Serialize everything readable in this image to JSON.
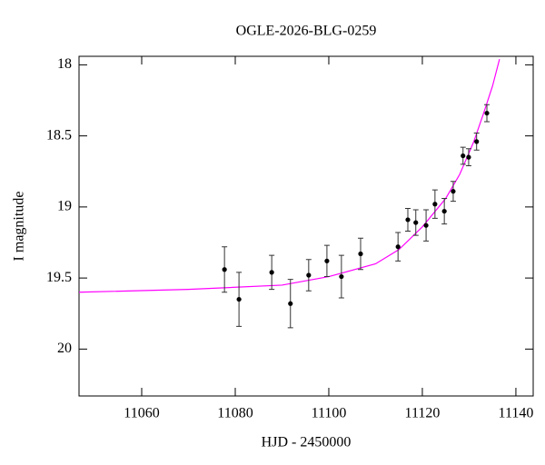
{
  "chart_data": {
    "type": "scatter",
    "title": "OGLE-2026-BLG-0259",
    "x_label": "HJD - 2450000",
    "y_label": "I magnitude",
    "x": [
      11077.7,
      11080.8,
      11087.8,
      11091.8,
      11095.7,
      11099.6,
      11102.7,
      11106.8,
      11114.8,
      11116.9,
      11118.6,
      11120.8,
      11122.7,
      11124.7,
      11126.6,
      11128.7,
      11129.9,
      11131.6,
      11133.8
    ],
    "values": [
      19.44,
      19.65,
      19.46,
      19.68,
      19.48,
      19.38,
      19.49,
      19.33,
      19.28,
      19.09,
      19.11,
      19.13,
      18.98,
      19.03,
      18.89,
      18.64,
      18.65,
      18.54,
      18.34
    ],
    "errors": [
      0.16,
      0.19,
      0.12,
      0.17,
      0.11,
      0.11,
      0.15,
      0.11,
      0.1,
      0.08,
      0.09,
      0.11,
      0.1,
      0.09,
      0.07,
      0.06,
      0.06,
      0.06,
      0.06
    ],
    "color": "#000000",
    "model": {
      "x": [
        11046.6,
        11070,
        11090,
        11100,
        11110,
        11115,
        11120,
        11125,
        11128,
        11131,
        11133,
        11135,
        11136.5
      ],
      "values": [
        19.6,
        19.58,
        19.55,
        19.49,
        19.4,
        19.3,
        19.14,
        18.94,
        18.77,
        18.54,
        18.35,
        18.15,
        17.96
      ],
      "color": "#ff00ff"
    },
    "xlim": [
      11046.6,
      11143.7
    ],
    "ylim": [
      20.33,
      17.94
    ],
    "xticks": [
      11060,
      11080,
      11100,
      11120,
      11140
    ],
    "yticks": [
      18,
      18.5,
      19,
      19.5,
      20
    ]
  }
}
